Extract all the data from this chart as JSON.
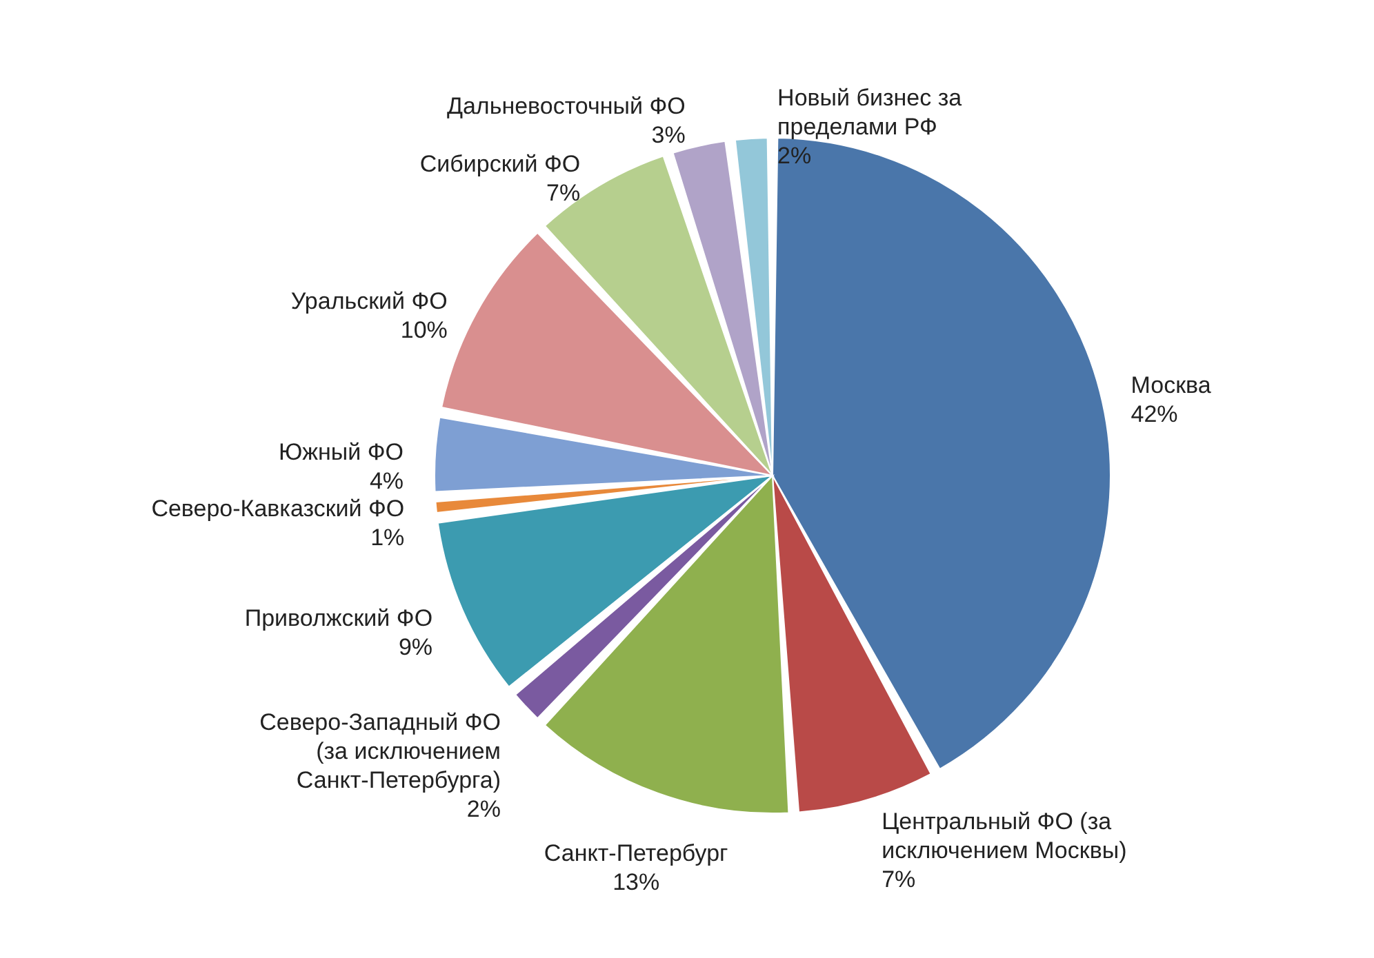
{
  "chart_data": {
    "type": "pie",
    "categories": [
      "Москва",
      "Центральный ФО (за исключением Москвы)",
      "Санкт-Петербург",
      "Северо-Западный ФО (за исключением Санкт-Петербурга)",
      "Приволжский ФО",
      "Северо-Кавказский ФО",
      "Южный ФО",
      "Уральский ФО",
      "Сибирский ФО",
      "Дальневосточный ФО",
      "Новый бизнес за пределами РФ"
    ],
    "values": [
      42,
      7,
      13,
      2,
      9,
      1,
      4,
      10,
      7,
      3,
      2
    ],
    "value_labels": [
      "42%",
      "7%",
      "13%",
      "2%",
      "9%",
      "1%",
      "4%",
      "10%",
      "7%",
      "3%",
      "2%"
    ],
    "colors": [
      "#4a76aa",
      "#b94a48",
      "#8fb04e",
      "#7a5aa0",
      "#3c9bb0",
      "#e8893a",
      "#7e9fd3",
      "#d98f8f",
      "#b6cf8e",
      "#b0a3c8",
      "#93c7d9"
    ]
  }
}
